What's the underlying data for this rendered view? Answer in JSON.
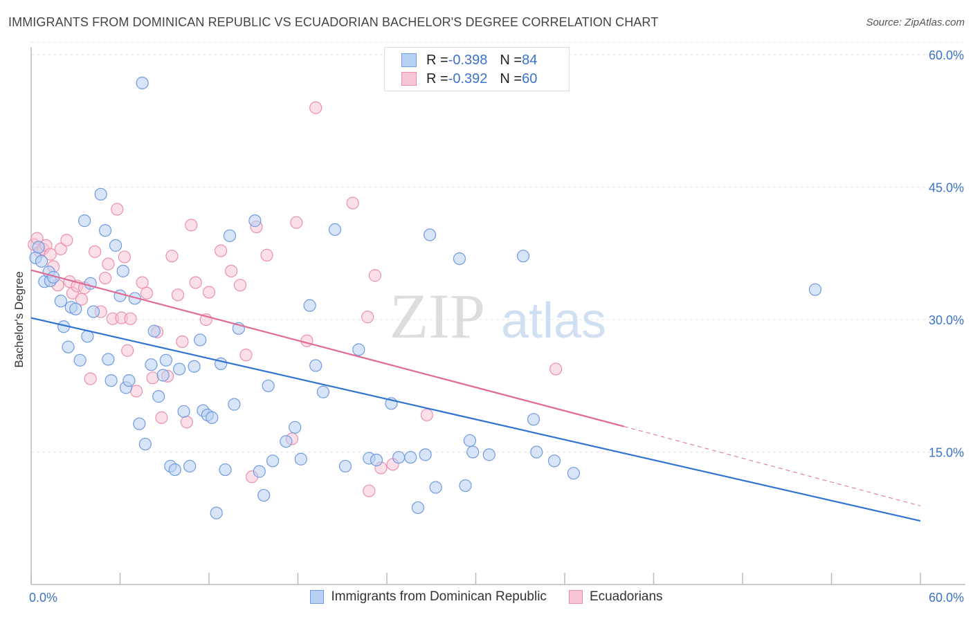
{
  "title": "IMMIGRANTS FROM DOMINICAN REPUBLIC VS ECUADORIAN BACHELOR'S DEGREE CORRELATION CHART",
  "source": "Source: ZipAtlas.com",
  "watermark": {
    "zip": "ZIP",
    "atlas": "atlas"
  },
  "legend": {
    "rows": [
      {
        "r_label": "R = ",
        "r_value": "-0.398",
        "n_label": "N = ",
        "n_value": "84"
      },
      {
        "r_label": "R = ",
        "r_value": "-0.392",
        "n_label": "N = ",
        "n_value": "60"
      }
    ]
  },
  "colors": {
    "blue_fill": "#b8d0f2",
    "blue_stroke": "#6f9be0",
    "blue_line": "#2f74d0",
    "pink_fill": "#f7c6d6",
    "pink_stroke": "#eb8fae",
    "pink_line": "#e06b92",
    "tick_label": "#3b73c9",
    "grid": "#e3e3e3"
  },
  "chart_data": {
    "type": "scatter",
    "xlabel": "",
    "ylabel": "Bachelor's Degree",
    "xlim": [
      0,
      60
    ],
    "ylim": [
      0,
      61.5
    ],
    "x_tick_labels": [
      {
        "value": 0,
        "label": "0.0%"
      },
      {
        "value": 60,
        "label": "60.0%"
      }
    ],
    "y_tick_labels": [
      {
        "value": 15,
        "label": "15.0%"
      },
      {
        "value": 30,
        "label": "30.0%"
      },
      {
        "value": 45,
        "label": "45.0%"
      },
      {
        "value": 60,
        "label": "60.0%"
      }
    ],
    "grid": true,
    "series": [
      {
        "name": "Immigrants from Dominican Republic",
        "r": -0.398,
        "n": 84,
        "trend": {
          "x0": 0,
          "y0": 30.2,
          "x1": 60,
          "y1": 7.2
        },
        "points": [
          [
            0.3,
            37.0
          ],
          [
            0.5,
            38.2
          ],
          [
            0.7,
            36.6
          ],
          [
            0.9,
            34.3
          ],
          [
            1.2,
            35.4
          ],
          [
            1.3,
            34.4
          ],
          [
            1.5,
            34.8
          ],
          [
            2.0,
            32.1
          ],
          [
            2.2,
            29.2
          ],
          [
            2.5,
            26.9
          ],
          [
            2.7,
            31.4
          ],
          [
            3.0,
            31.2
          ],
          [
            3.3,
            25.4
          ],
          [
            3.6,
            41.2
          ],
          [
            3.8,
            28.1
          ],
          [
            4.0,
            34.1
          ],
          [
            4.2,
            30.9
          ],
          [
            4.7,
            44.2
          ],
          [
            5.0,
            40.1
          ],
          [
            5.2,
            25.5
          ],
          [
            5.4,
            23.1
          ],
          [
            5.7,
            38.4
          ],
          [
            6.0,
            32.7
          ],
          [
            6.2,
            35.5
          ],
          [
            6.4,
            22.3
          ],
          [
            6.6,
            23.1
          ],
          [
            7.0,
            32.4
          ],
          [
            7.3,
            18.2
          ],
          [
            7.5,
            56.8
          ],
          [
            7.7,
            15.9
          ],
          [
            8.1,
            24.9
          ],
          [
            8.3,
            28.7
          ],
          [
            8.6,
            21.3
          ],
          [
            8.9,
            23.7
          ],
          [
            9.1,
            25.4
          ],
          [
            9.4,
            13.4
          ],
          [
            9.7,
            13.0
          ],
          [
            10.0,
            24.4
          ],
          [
            10.3,
            19.6
          ],
          [
            10.7,
            13.4
          ],
          [
            11.0,
            24.7
          ],
          [
            11.4,
            27.7
          ],
          [
            11.6,
            19.7
          ],
          [
            11.9,
            19.2
          ],
          [
            12.2,
            18.9
          ],
          [
            12.5,
            8.1
          ],
          [
            12.8,
            25.0
          ],
          [
            13.1,
            13.0
          ],
          [
            13.4,
            39.5
          ],
          [
            13.7,
            20.4
          ],
          [
            14.0,
            29.0
          ],
          [
            15.1,
            41.2
          ],
          [
            15.4,
            12.8
          ],
          [
            15.7,
            10.1
          ],
          [
            16.0,
            22.5
          ],
          [
            16.3,
            14.0
          ],
          [
            17.2,
            16.2
          ],
          [
            17.8,
            17.8
          ],
          [
            18.2,
            14.2
          ],
          [
            18.8,
            31.6
          ],
          [
            19.2,
            24.8
          ],
          [
            19.7,
            21.8
          ],
          [
            20.5,
            40.2
          ],
          [
            21.2,
            13.4
          ],
          [
            22.1,
            26.6
          ],
          [
            22.8,
            14.3
          ],
          [
            23.3,
            14.1
          ],
          [
            24.3,
            20.5
          ],
          [
            24.8,
            14.4
          ],
          [
            25.6,
            14.4
          ],
          [
            26.1,
            8.7
          ],
          [
            26.6,
            14.7
          ],
          [
            26.9,
            39.6
          ],
          [
            27.3,
            11.0
          ],
          [
            28.9,
            36.9
          ],
          [
            29.3,
            11.2
          ],
          [
            29.6,
            16.3
          ],
          [
            29.8,
            15.0
          ],
          [
            30.9,
            14.7
          ],
          [
            33.2,
            37.2
          ],
          [
            33.9,
            18.7
          ],
          [
            34.1,
            15.0
          ],
          [
            35.3,
            14.0
          ],
          [
            36.6,
            12.6
          ],
          [
            52.9,
            33.4
          ]
        ]
      },
      {
        "name": "Ecuadorians",
        "r": -0.392,
        "n": 60,
        "trend": {
          "x0": 0,
          "y0": 35.6,
          "x1": 40,
          "y1": 17.9,
          "dash_x1": 60,
          "dash_y1": 8.9
        },
        "points": [
          [
            0.2,
            38.5
          ],
          [
            0.4,
            39.2
          ],
          [
            0.6,
            37.7
          ],
          [
            0.8,
            38.0
          ],
          [
            1.0,
            38.4
          ],
          [
            1.3,
            37.4
          ],
          [
            1.5,
            36.0
          ],
          [
            1.8,
            33.9
          ],
          [
            2.0,
            38.0
          ],
          [
            2.4,
            39.0
          ],
          [
            2.6,
            34.3
          ],
          [
            2.8,
            33.0
          ],
          [
            3.1,
            33.8
          ],
          [
            3.4,
            32.3
          ],
          [
            3.6,
            33.6
          ],
          [
            4.0,
            23.3
          ],
          [
            4.3,
            37.7
          ],
          [
            4.7,
            30.9
          ],
          [
            5.0,
            34.7
          ],
          [
            5.2,
            36.3
          ],
          [
            5.5,
            30.1
          ],
          [
            5.8,
            42.5
          ],
          [
            6.1,
            30.2
          ],
          [
            6.3,
            37.1
          ],
          [
            6.7,
            30.1
          ],
          [
            6.5,
            26.5
          ],
          [
            7.1,
            21.9
          ],
          [
            7.5,
            34.2
          ],
          [
            7.8,
            33.0
          ],
          [
            8.2,
            23.4
          ],
          [
            8.5,
            28.6
          ],
          [
            8.8,
            18.9
          ],
          [
            9.2,
            23.6
          ],
          [
            9.5,
            37.2
          ],
          [
            9.9,
            32.8
          ],
          [
            10.2,
            27.5
          ],
          [
            10.5,
            18.4
          ],
          [
            10.8,
            40.7
          ],
          [
            11.1,
            34.2
          ],
          [
            11.8,
            30.0
          ],
          [
            12.0,
            33.1
          ],
          [
            12.8,
            37.8
          ],
          [
            13.5,
            35.5
          ],
          [
            14.1,
            33.9
          ],
          [
            14.5,
            26.0
          ],
          [
            14.9,
            12.2
          ],
          [
            15.2,
            40.5
          ],
          [
            15.9,
            37.3
          ],
          [
            17.6,
            16.5
          ],
          [
            17.9,
            41.0
          ],
          [
            18.6,
            27.6
          ],
          [
            19.2,
            54.0
          ],
          [
            21.7,
            43.2
          ],
          [
            22.7,
            30.3
          ],
          [
            22.8,
            10.6
          ],
          [
            23.2,
            35.0
          ],
          [
            23.6,
            13.2
          ],
          [
            24.4,
            13.6
          ],
          [
            26.7,
            19.2
          ],
          [
            35.4,
            24.4
          ]
        ]
      }
    ]
  }
}
